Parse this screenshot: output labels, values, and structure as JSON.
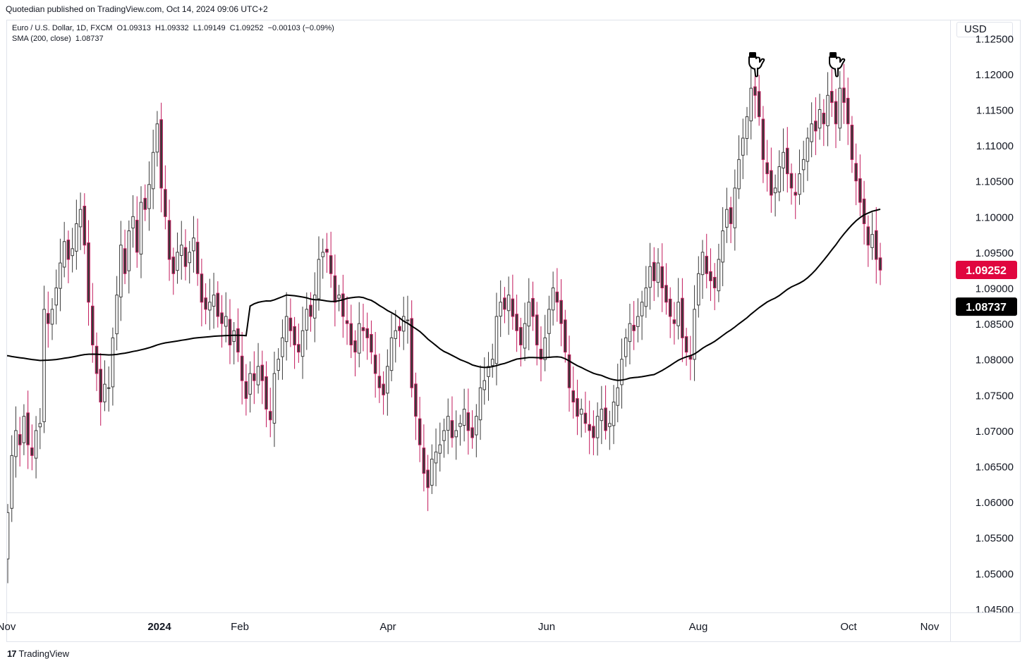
{
  "header": {
    "published": "Quotedian published on TradingView.com, Oct 14, 2024 09:06 UTC+2"
  },
  "legend": {
    "symbol_line": "Euro / U.S. Dollar, 1D, FXCM  O1.09313  H1.09332  L1.09149  C1.09252  −0.00103 (−0.09%)",
    "sma_line": "SMA (200, close)  1.08737"
  },
  "currency": "USD",
  "footer": {
    "brand": "TradingView"
  },
  "colors": {
    "up": "#3a3a3a",
    "down": "#c2185b",
    "sma": "#000000",
    "price_badge": "#e0063f",
    "sma_badge": "#000000"
  },
  "chart_data": {
    "type": "candlestick",
    "title": "Euro / U.S. Dollar, 1D, FXCM",
    "ylim": [
      1.0445,
      1.1275
    ],
    "y_ticks": [
      "1.12500",
      "1.12000",
      "1.11500",
      "1.11000",
      "1.10500",
      "1.10000",
      "1.09500",
      "1.09000",
      "1.08500",
      "1.08000",
      "1.07500",
      "1.07000",
      "1.06500",
      "1.06000",
      "1.05500",
      "1.05000",
      "1.04500"
    ],
    "x_ticks": [
      {
        "label": "Nov",
        "bold": false
      },
      {
        "label": "2024",
        "bold": true
      },
      {
        "label": "Feb",
        "bold": false
      },
      {
        "label": "Apr",
        "bold": false
      },
      {
        "label": "Jun",
        "bold": false
      },
      {
        "label": "Aug",
        "bold": false
      },
      {
        "label": "Oct",
        "bold": false
      },
      {
        "label": "Nov",
        "bold": false
      }
    ],
    "last_price": "1.09252",
    "sma_value": "1.08737",
    "annotations": [
      "finger-down-icon",
      "finger-down-icon"
    ],
    "closes": [
      1.0585,
      1.0665,
      1.07,
      1.068,
      1.072,
      1.068,
      1.0665,
      1.07,
      1.071,
      1.087,
      1.085,
      1.087,
      1.09,
      1.0935,
      1.0965,
      1.094,
      1.0955,
      1.099,
      1.101,
      1.096,
      1.088,
      1.082,
      1.078,
      1.074,
      1.0765,
      1.076,
      1.083,
      1.089,
      1.096,
      1.092,
      1.098,
      1.1,
      1.095,
      1.102,
      1.101,
      1.1045,
      1.109,
      1.113,
      1.104,
      1.1,
      1.094,
      1.092,
      1.095,
      1.096,
      1.093,
      1.095,
      1.097,
      1.092,
      1.088,
      1.087,
      1.088,
      1.089,
      1.086,
      1.085,
      1.086,
      1.082,
      1.084,
      1.081,
      1.077,
      1.0745,
      1.078,
      1.077,
      1.079,
      1.077,
      1.073,
      1.0715,
      1.078,
      1.08,
      1.083,
      1.086,
      1.084,
      1.082,
      1.081,
      1.084,
      1.087,
      1.086,
      1.089,
      1.094,
      1.095,
      1.095,
      1.092,
      1.088,
      1.089,
      1.086,
      1.085,
      1.082,
      1.081,
      1.085,
      1.084,
      1.083,
      1.081,
      1.078,
      1.076,
      1.075,
      1.079,
      1.083,
      1.084,
      1.084,
      1.086,
      1.0855,
      1.076,
      1.072,
      1.068,
      1.064,
      1.062,
      1.066,
      1.067,
      1.068,
      1.07,
      1.072,
      1.069,
      1.07,
      1.071,
      1.073,
      1.07,
      1.069,
      1.072,
      1.076,
      1.077,
      1.079,
      1.08,
      1.086,
      1.088,
      1.087,
      1.089,
      1.086,
      1.084,
      1.082,
      1.085,
      1.088,
      1.086,
      1.082,
      1.08,
      1.083,
      1.087,
      1.09,
      1.088,
      1.085,
      1.081,
      1.076,
      1.074,
      1.072,
      1.073,
      1.071,
      1.07,
      1.069,
      1.072,
      1.073,
      1.07,
      1.071,
      1.074,
      1.076,
      1.08,
      1.083,
      1.085,
      1.084,
      1.086,
      1.088,
      1.09,
      1.093,
      1.091,
      1.0935,
      1.09,
      1.088,
      1.086,
      1.085,
      1.088,
      1.083,
      1.081,
      1.08,
      1.087,
      1.092,
      1.095,
      1.092,
      1.091,
      1.09,
      1.094,
      1.098,
      1.101,
      1.099,
      1.104,
      1.108,
      1.111,
      1.114,
      1.118,
      1.117,
      1.114,
      1.108,
      1.106,
      1.103,
      1.104,
      1.107,
      1.109,
      1.106,
      1.104,
      1.103,
      1.106,
      1.108,
      1.111,
      1.113,
      1.112,
      1.115,
      1.113,
      1.117,
      1.116,
      1.113,
      1.118,
      1.116,
      1.113,
      1.108,
      1.105,
      1.102,
      1.099,
      1.096,
      1.0975,
      1.094,
      1.0925
    ]
  }
}
